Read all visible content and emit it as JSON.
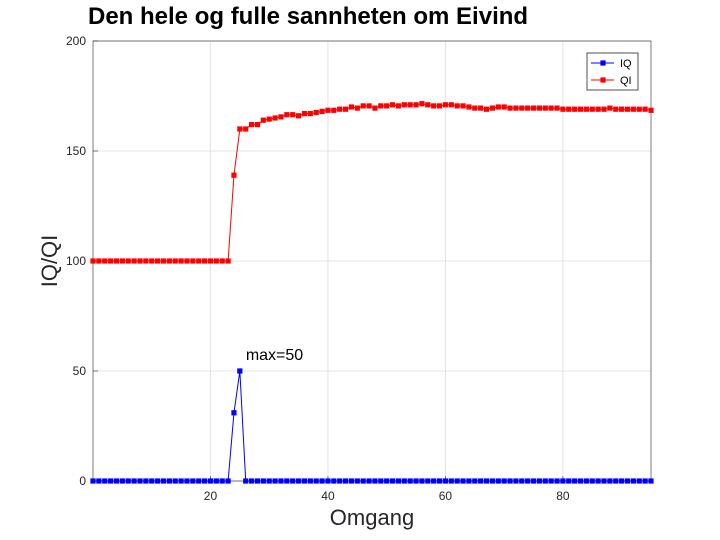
{
  "chart_data": {
    "type": "line",
    "title": "Den hele og fulle sannheten om Eivind",
    "xlabel": "Omgang",
    "ylabel": "IQ/QI",
    "xlim": [
      0,
      95
    ],
    "ylim": [
      0,
      200
    ],
    "xticks": [
      20,
      40,
      60,
      80
    ],
    "yticks": [
      0,
      50,
      100,
      150,
      200
    ],
    "grid": true,
    "legend_position": "top-right",
    "annotations": [
      {
        "text": "max=50",
        "x": 25,
        "y": 50
      }
    ],
    "x": [
      0,
      1,
      2,
      3,
      4,
      5,
      6,
      7,
      8,
      9,
      10,
      11,
      12,
      13,
      14,
      15,
      16,
      17,
      18,
      19,
      20,
      21,
      22,
      23,
      24,
      25,
      26,
      27,
      28,
      29,
      30,
      31,
      32,
      33,
      34,
      35,
      36,
      37,
      38,
      39,
      40,
      41,
      42,
      43,
      44,
      45,
      46,
      47,
      48,
      49,
      50,
      51,
      52,
      53,
      54,
      55,
      56,
      57,
      58,
      59,
      60,
      61,
      62,
      63,
      64,
      65,
      66,
      67,
      68,
      69,
      70,
      71,
      72,
      73,
      74,
      75,
      76,
      77,
      78,
      79,
      80,
      81,
      82,
      83,
      84,
      85,
      86,
      87,
      88,
      89,
      90,
      91,
      92,
      93,
      94,
      95
    ],
    "series": [
      {
        "name": "IQ",
        "color": "#0000ff",
        "values": [
          0,
          0,
          0,
          0,
          0,
          0,
          0,
          0,
          0,
          0,
          0,
          0,
          0,
          0,
          0,
          0,
          0,
          0,
          0,
          0,
          0,
          0,
          0,
          0,
          31,
          50,
          0,
          0,
          0,
          0,
          0,
          0,
          0,
          0,
          0,
          0,
          0,
          0,
          0,
          0,
          0,
          0,
          0,
          0,
          0,
          0,
          0,
          0,
          0,
          0,
          0,
          0,
          0,
          0,
          0,
          0,
          0,
          0,
          0,
          0,
          0,
          0,
          0,
          0,
          0,
          0,
          0,
          0,
          0,
          0,
          0,
          0,
          0,
          0,
          0,
          0,
          0,
          0,
          0,
          0,
          0,
          0,
          0,
          0,
          0,
          0,
          0,
          0,
          0,
          0,
          0,
          0,
          0,
          0,
          0,
          0
        ]
      },
      {
        "name": "QI",
        "color": "#ff0000",
        "values": [
          100,
          100,
          100,
          100,
          100,
          100,
          100,
          100,
          100,
          100,
          100,
          100,
          100,
          100,
          100,
          100,
          100,
          100,
          100,
          100,
          100,
          100,
          100,
          100,
          139,
          160,
          160,
          162,
          162,
          164,
          164.5,
          165,
          165.5,
          166.5,
          166.5,
          166,
          167,
          167,
          167.5,
          168,
          168.5,
          168.5,
          169,
          169,
          170,
          169.5,
          170.5,
          170.5,
          169.5,
          170.5,
          170.5,
          171,
          170.5,
          171,
          171,
          171,
          171.5,
          171,
          170.5,
          170.5,
          171,
          171,
          170.5,
          170.5,
          170,
          169.5,
          169.5,
          169,
          169.5,
          170,
          170,
          169.5,
          169.5,
          169.5,
          169.5,
          169.5,
          169.5,
          169.5,
          169.5,
          169.5,
          169,
          169,
          169,
          169,
          169,
          169,
          169,
          169,
          169.5,
          169,
          169,
          169,
          169,
          169,
          169,
          168.5
        ]
      }
    ]
  }
}
